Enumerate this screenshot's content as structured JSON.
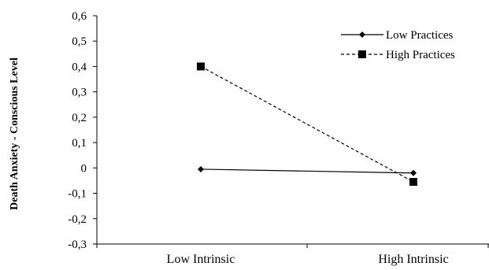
{
  "chart_data": {
    "type": "line",
    "title": "",
    "xlabel": "",
    "ylabel": "Death Anxiety - Conscious Level",
    "categories": [
      "Low Intrinsic",
      "High Intrinsic"
    ],
    "ylim": [
      -0.3,
      0.6
    ],
    "yticks": [
      -0.3,
      -0.2,
      -0.1,
      0,
      0.1,
      0.2,
      0.3,
      0.4,
      0.5,
      0.6
    ],
    "ytick_labels": [
      "-0,3",
      "-0,2",
      "-0,1",
      "0",
      "0,1",
      "0,2",
      "0,3",
      "0,4",
      "0,5",
      "0,6"
    ],
    "grid": false,
    "legend_position": "top-right",
    "series": [
      {
        "name": "Low Practices",
        "values": [
          -0.005,
          -0.02
        ],
        "marker": "diamond",
        "line_style": "solid",
        "color": "#000000"
      },
      {
        "name": "High Practices",
        "values": [
          0.4,
          -0.055
        ],
        "marker": "square",
        "line_style": "dashed",
        "color": "#000000"
      }
    ]
  }
}
